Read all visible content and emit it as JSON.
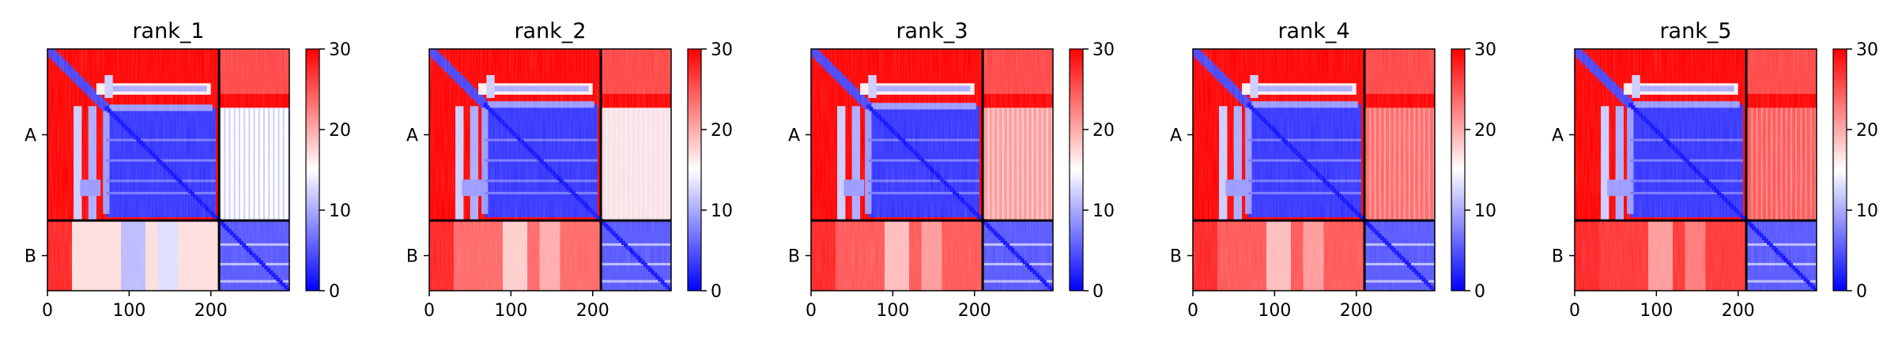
{
  "chart_data": [
    {
      "type": "heatmap",
      "title": "rank_1",
      "chain_labels": [
        "A",
        "B"
      ],
      "chain_boundary": 210,
      "n_residues": 296,
      "xticks": [
        0,
        100,
        200
      ],
      "colorbar": {
        "min": 0,
        "max": 30,
        "ticks": [
          0,
          10,
          20,
          30
        ],
        "colors": [
          "#0000ff",
          "#ffffff",
          "#ff0000"
        ]
      },
      "inter_chain_error": {
        "AB": 15,
        "BA": 17
      },
      "hinge_start": 72
    },
    {
      "type": "heatmap",
      "title": "rank_2",
      "chain_labels": [
        "A",
        "B"
      ],
      "chain_boundary": 210,
      "n_residues": 296,
      "xticks": [
        0,
        100,
        200
      ],
      "colorbar": {
        "min": 0,
        "max": 30,
        "ticks": [
          0,
          10,
          20,
          30
        ],
        "colors": [
          "#0000ff",
          "#ffffff",
          "#ff0000"
        ]
      },
      "inter_chain_error": {
        "AB": 17,
        "BA": 24
      },
      "hinge_start": 68
    },
    {
      "type": "heatmap",
      "title": "rank_3",
      "chain_labels": [
        "A",
        "B"
      ],
      "chain_boundary": 210,
      "n_residues": 296,
      "xticks": [
        0,
        100,
        200
      ],
      "colorbar": {
        "min": 0,
        "max": 30,
        "ticks": [
          0,
          10,
          20,
          30
        ],
        "colors": [
          "#0000ff",
          "#ffffff",
          "#ff0000"
        ]
      },
      "inter_chain_error": {
        "AB": 21,
        "BA": 25
      },
      "hinge_start": 70
    },
    {
      "type": "heatmap",
      "title": "rank_4",
      "chain_labels": [
        "A",
        "B"
      ],
      "chain_boundary": 210,
      "n_residues": 296,
      "xticks": [
        0,
        100,
        200
      ],
      "colorbar": {
        "min": 0,
        "max": 30,
        "ticks": [
          0,
          10,
          20,
          30
        ],
        "colors": [
          "#0000ff",
          "#ffffff",
          "#ff0000"
        ]
      },
      "inter_chain_error": {
        "AB": 24,
        "BA": 25
      },
      "hinge_start": 68
    },
    {
      "type": "heatmap",
      "title": "rank_5",
      "chain_labels": [
        "A",
        "B"
      ],
      "chain_boundary": 210,
      "n_residues": 296,
      "xticks": [
        0,
        100,
        200
      ],
      "colorbar": {
        "min": 0,
        "max": 30,
        "ticks": [
          0,
          10,
          20,
          30
        ],
        "colors": [
          "#0000ff",
          "#ffffff",
          "#ff0000"
        ]
      },
      "inter_chain_error": {
        "AB": 25,
        "BA": 27
      },
      "hinge_start": 68
    }
  ]
}
